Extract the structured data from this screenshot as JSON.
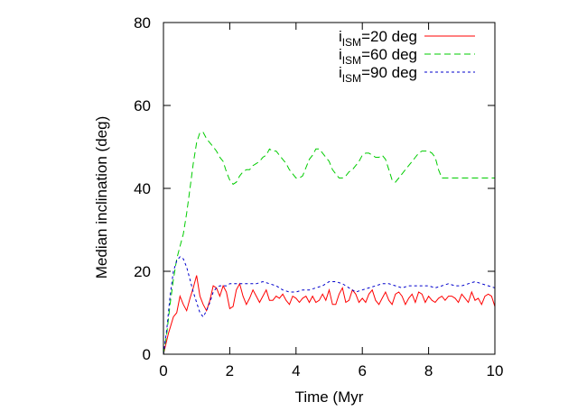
{
  "chart_data": {
    "type": "line",
    "title": "",
    "xlabel": "Time (Myr",
    "ylabel": "Median inclination (deg)",
    "xlim": [
      0,
      10
    ],
    "ylim": [
      0,
      80
    ],
    "xticks": [
      0,
      2,
      4,
      6,
      8,
      10
    ],
    "yticks": [
      0,
      20,
      40,
      60,
      80
    ],
    "grid": false,
    "legend_position": "top-right",
    "series": [
      {
        "legend": {
          "prefix": "i",
          "sub": "ISM",
          "suffix": "=20 deg"
        },
        "color": "#ff0000",
        "dash": "solid",
        "x": [
          0,
          0.15,
          0.3,
          0.4,
          0.5,
          0.6,
          0.7,
          0.8,
          0.9,
          1.0,
          1.1,
          1.2,
          1.3,
          1.4,
          1.5,
          1.6,
          1.7,
          1.8,
          1.9,
          2.0,
          2.1,
          2.2,
          2.3,
          2.4,
          2.5,
          2.6,
          2.7,
          2.8,
          2.9,
          3.0,
          3.1,
          3.2,
          3.3,
          3.4,
          3.5,
          3.6,
          3.7,
          3.8,
          3.9,
          4.0,
          4.1,
          4.2,
          4.3,
          4.4,
          4.5,
          4.6,
          4.7,
          4.8,
          4.9,
          5.0,
          5.1,
          5.2,
          5.3,
          5.4,
          5.5,
          5.6,
          5.7,
          5.8,
          5.9,
          6.0,
          6.1,
          6.2,
          6.3,
          6.4,
          6.5,
          6.6,
          6.7,
          6.8,
          6.9,
          7.0,
          7.1,
          7.2,
          7.3,
          7.4,
          7.5,
          7.6,
          7.7,
          7.8,
          7.9,
          8.0,
          8.1,
          8.2,
          8.3,
          8.4,
          8.5,
          8.6,
          8.7,
          8.8,
          8.9,
          9.0,
          9.1,
          9.2,
          9.3,
          9.4,
          9.5,
          9.6,
          9.7,
          9.8,
          9.9,
          10.0
        ],
        "values": [
          0,
          5,
          9,
          10,
          14,
          12,
          10.5,
          13.5,
          16,
          19,
          14,
          12,
          10.5,
          13,
          16.5,
          16,
          14,
          16.5,
          15,
          11,
          11.5,
          15.5,
          17,
          14,
          12,
          13.5,
          15.5,
          14,
          12.5,
          14,
          15.5,
          13,
          13,
          14,
          13.5,
          14.5,
          13,
          12,
          14,
          13.5,
          12.5,
          13.5,
          14,
          12.5,
          14,
          12.5,
          13,
          14.5,
          13,
          15.5,
          12,
          12,
          14.5,
          16,
          12.5,
          13,
          15.5,
          14.5,
          12.5,
          13.5,
          12.5,
          14.5,
          15.5,
          13,
          12,
          13.5,
          15,
          13,
          12,
          14.5,
          15,
          14,
          12,
          13.5,
          14.5,
          12.5,
          15,
          14.5,
          12.5,
          14,
          13,
          12.5,
          13.5,
          14,
          13,
          14,
          14,
          13.5,
          12.5,
          14.5,
          13.5,
          12.5,
          15,
          13,
          13.5,
          12,
          14,
          14.5,
          14,
          11.5
        ]
      },
      {
        "legend": {
          "prefix": "i",
          "sub": "ISM",
          "suffix": "=60 deg"
        },
        "color": "#00cc00",
        "dash": "dashed",
        "x": [
          0,
          0.1,
          0.2,
          0.3,
          0.4,
          0.5,
          0.6,
          0.7,
          0.8,
          0.9,
          1.0,
          1.1,
          1.2,
          1.3,
          1.4,
          1.5,
          1.6,
          1.7,
          1.8,
          1.9,
          2.0,
          2.1,
          2.2,
          2.3,
          2.4,
          2.5,
          2.6,
          2.7,
          2.8,
          2.9,
          3.0,
          3.1,
          3.2,
          3.3,
          3.4,
          3.5,
          3.6,
          3.7,
          3.8,
          3.9,
          4.0,
          4.1,
          4.2,
          4.3,
          4.4,
          4.5,
          4.6,
          4.7,
          4.8,
          4.9,
          5.0,
          5.1,
          5.2,
          5.3,
          5.4,
          5.5,
          5.6,
          5.7,
          5.8,
          5.9,
          6.0,
          6.1,
          6.2,
          6.3,
          6.4,
          6.5,
          6.6,
          6.7,
          6.8,
          6.9,
          7.0,
          7.1,
          7.2,
          7.3,
          7.4,
          7.5,
          7.6,
          7.7,
          7.8,
          7.9,
          8.0,
          8.1,
          8.2,
          8.3,
          8.4,
          8.5,
          8.6,
          8.7,
          8.8,
          8.9,
          9.0,
          9.1,
          9.2,
          9.3,
          9.4,
          9.5,
          9.6,
          9.7,
          9.8,
          9.9,
          10.0
        ],
        "values": [
          0,
          5,
          12,
          18,
          23,
          26,
          29,
          34,
          40,
          46,
          51,
          53.5,
          53.5,
          52,
          51,
          50,
          49,
          47.5,
          46.5,
          44,
          42,
          41,
          41.5,
          43,
          44,
          44.5,
          44.5,
          45.5,
          46,
          46.5,
          47.5,
          48,
          49.5,
          49,
          49,
          48,
          47,
          46,
          44.5,
          43.5,
          42.5,
          42.5,
          43,
          45,
          47,
          48,
          49.5,
          49.5,
          48.5,
          47.5,
          46.5,
          44.5,
          43.5,
          42.5,
          42.5,
          43,
          44,
          44.5,
          45.5,
          46.5,
          48,
          48.5,
          48.5,
          48,
          47.5,
          47.5,
          48,
          47,
          44.5,
          42,
          41.5,
          42.5,
          43.5,
          44.5,
          45.5,
          46.5,
          47.5,
          48.5,
          49,
          49,
          49,
          48.5,
          47.5,
          44.5,
          42.5,
          42.5,
          42.5,
          42.5,
          42.5,
          42.5,
          42.5,
          42.5,
          42.5,
          42.5,
          42.5,
          42.5,
          42.5,
          42.5,
          42.5,
          42.5,
          42.5
        ]
      },
      {
        "legend": {
          "prefix": "i",
          "sub": "ISM",
          "suffix": "=90 deg"
        },
        "color": "#0000cc",
        "dash": "dotted",
        "x": [
          0,
          0.1,
          0.2,
          0.3,
          0.4,
          0.5,
          0.6,
          0.7,
          0.8,
          0.9,
          1.0,
          1.1,
          1.2,
          1.3,
          1.4,
          1.5,
          1.6,
          1.7,
          1.8,
          1.9,
          2.0,
          2.2,
          2.4,
          2.6,
          2.8,
          3.0,
          3.2,
          3.4,
          3.6,
          3.8,
          4.0,
          4.2,
          4.4,
          4.6,
          4.8,
          5.0,
          5.2,
          5.4,
          5.6,
          5.8,
          6.0,
          6.2,
          6.4,
          6.6,
          6.8,
          7.0,
          7.2,
          7.4,
          7.6,
          7.8,
          8.0,
          8.2,
          8.4,
          8.6,
          8.8,
          9.0,
          9.2,
          9.4,
          9.6,
          9.8,
          10.0
        ],
        "values": [
          0,
          6,
          14,
          20,
          22.5,
          23.5,
          23,
          21,
          18,
          15,
          12.5,
          10,
          9,
          10.5,
          12.5,
          15,
          16,
          16.5,
          16.5,
          16.5,
          17,
          17,
          17,
          17,
          17,
          17.5,
          17,
          16.5,
          15.5,
          15,
          15,
          15.5,
          15.5,
          16,
          16.5,
          17.5,
          17.5,
          17,
          16,
          15,
          15.5,
          16,
          16.5,
          17,
          17,
          16.5,
          16,
          16.5,
          16.5,
          16.5,
          16.5,
          16,
          16.5,
          17,
          16.5,
          16.5,
          17,
          17.5,
          17,
          16.5,
          16
        ]
      }
    ]
  }
}
